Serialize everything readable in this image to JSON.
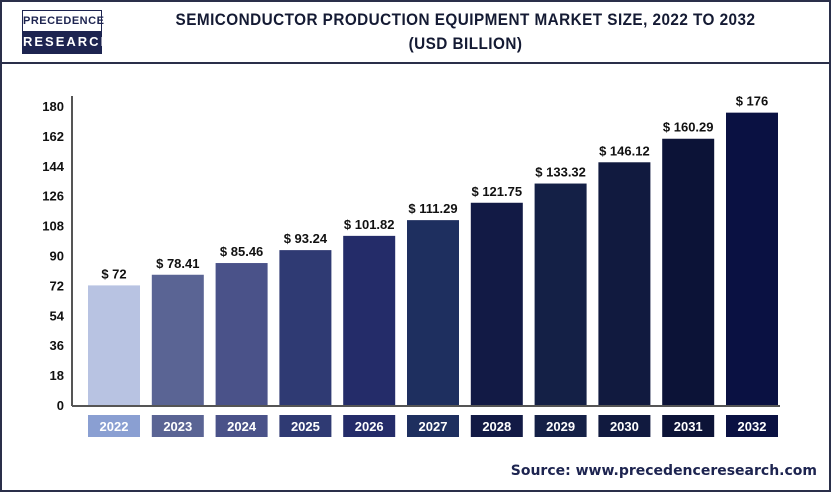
{
  "logo": {
    "line1": "PRECEDENCE",
    "line2": "RESEARCH"
  },
  "chart_data": {
    "type": "bar",
    "title": "SEMICONDUCTOR PRODUCTION EQUIPMENT MARKET SIZE, 2022 TO 2032",
    "subtitle": "(USD BILLION)",
    "categories": [
      "2022",
      "2023",
      "2024",
      "2025",
      "2026",
      "2027",
      "2028",
      "2029",
      "2030",
      "2031",
      "2032"
    ],
    "values": [
      72,
      78.41,
      85.46,
      93.24,
      101.82,
      111.29,
      121.75,
      133.32,
      146.12,
      160.29,
      176
    ],
    "data_labels": [
      "$ 72",
      "$ 78.41",
      "$ 85.46",
      "$ 93.24",
      "$ 101.82",
      "$ 111.29",
      "$ 121.75",
      "$ 133.32",
      "$ 146.12",
      "$ 160.29",
      "$ 176"
    ],
    "yticks": [
      0,
      18,
      36,
      54,
      72,
      90,
      108,
      126,
      144,
      162,
      180
    ],
    "ylim": [
      0,
      180
    ],
    "xlabel": "",
    "ylabel": "",
    "grid": false,
    "bar_colors": [
      "#b8c3e2",
      "#5a6494",
      "#4a5289",
      "#2f3a73",
      "#242c69",
      "#1e2f5f",
      "#121a45",
      "#142046",
      "#111a3f",
      "#0c1337",
      "#0a1142"
    ],
    "label_box_colors": [
      "#8a9fd2",
      "#5a6494",
      "#4a5289",
      "#2f3a73",
      "#242c69",
      "#1e2f5f",
      "#121a45",
      "#142046",
      "#111a3f",
      "#0c1337",
      "#0a1142"
    ]
  },
  "source": "Source: www.precedenceresearch.com"
}
